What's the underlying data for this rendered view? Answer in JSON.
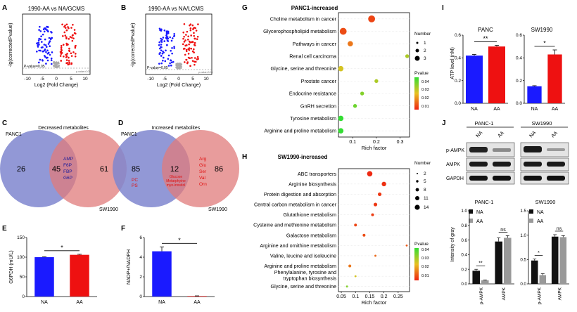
{
  "panels": {
    "A": {
      "letter": "A",
      "title": "1990-AA vs NA/GCMS",
      "ylabel": "-lg(correctedPvalue)",
      "xlabel": "Log2 (Fold Change)",
      "xticks": [
        "-10",
        "-5",
        "0",
        "5",
        "10"
      ],
      "pline": "P-value=0.05",
      "pline_right": "p-value=0.05"
    },
    "B": {
      "letter": "B",
      "title": "1990-AA vs NA/LCMS",
      "ylabel": "-lg(correctedPvalue)",
      "xlabel": "Log2 (Fold Change)",
      "xticks": [
        "-10",
        "-5",
        "0",
        "5",
        "10"
      ],
      "pline": "P-value=0.05",
      "pline_right": "p-value=0.05"
    },
    "C": {
      "letter": "C",
      "title": "Decreased metabolites",
      "left_label": "PANC1",
      "right_label": "SW1990",
      "left_count": "26",
      "mid_count": "45",
      "right_count": "61",
      "mid_items": [
        "AMP",
        "F6P",
        "FBP",
        "G6P"
      ]
    },
    "D": {
      "letter": "D",
      "title": "Increased metabolites",
      "left_label": "PANC1",
      "right_label": "SW1990",
      "left_count": "85",
      "mid_count": "12",
      "right_count": "86",
      "left_items": [
        "PC",
        "PS"
      ],
      "mid_items": [
        "Glucose",
        "Metarphyine",
        "myo-inositol"
      ],
      "right_items": [
        "Arg",
        "Glu",
        "Ser",
        "Val",
        "Orn"
      ]
    },
    "E": {
      "letter": "E",
      "star": "*"
    },
    "F": {
      "letter": "F",
      "star": "*"
    },
    "G": {
      "letter": "G",
      "title": "PANC1-increased",
      "xlabel": "Rich factor",
      "legend_number_title": "Number",
      "legend_numbers": [
        "1",
        "2",
        "3"
      ],
      "legend_p_title": "Pvalue",
      "legend_p_ticks": [
        "0.04",
        "0.03",
        "0.02",
        "0.01"
      ]
    },
    "H": {
      "letter": "H",
      "title": "SW1990-increased",
      "xlabel": "Rich factor",
      "legend_number_title": "Number",
      "legend_numbers": [
        "2",
        "5",
        "8",
        "11",
        "14"
      ],
      "legend_p_title": "Pvalue",
      "legend_p_ticks": [
        "0.04",
        "0.03",
        "0.02",
        "0.01"
      ]
    },
    "I": {
      "letter": "I",
      "ylabel": "ATP level (nM)",
      "panc_title": "PANC",
      "sw_title": "SW1990",
      "panc_star": "**",
      "sw_star": "*"
    },
    "J": {
      "letter": "J",
      "panc_label": "PANC-1",
      "sw_label": "SW1990",
      "lane_labels": [
        "NA",
        "AA",
        "NA",
        "AA"
      ],
      "rows": [
        "p-AMPK",
        "AMPK",
        "GAPDH"
      ],
      "bar_panc_title": "PANC-1",
      "bar_sw_title": "SW1990",
      "ylabel": "Intensity of gray",
      "legend": [
        "NA",
        "AA"
      ],
      "stars": [
        "**",
        "ns",
        "*",
        "ns"
      ]
    }
  },
  "colors": {
    "blue": "#1a1aff",
    "red": "#ee1111",
    "gray": "#999999",
    "black": "#111111",
    "venn_left": "#7f86cf",
    "venn_right": "#e07b7b"
  },
  "chart_data": [
    {
      "id": "E",
      "type": "bar",
      "categories": [
        "NA",
        "AA"
      ],
      "values": [
        100,
        106
      ],
      "errors": [
        1,
        1.5
      ],
      "ylabel": "G6PDH (mU/L)",
      "ylim": [
        0,
        150
      ],
      "yticks": [
        "0",
        "50",
        "100",
        "150"
      ]
    },
    {
      "id": "F",
      "type": "bar",
      "categories": [
        "NA",
        "AA"
      ],
      "values": [
        4.6,
        0.05
      ],
      "errors": [
        0.45,
        0.02
      ],
      "ylabel": "NADP+/NADPH",
      "ylim": [
        0,
        6
      ],
      "yticks": [
        "0",
        "2",
        "4",
        "6"
      ]
    },
    {
      "id": "G",
      "type": "scatter",
      "title": "PANC1-increased",
      "xlabel": "Rich factor",
      "xlim": [
        0.04,
        0.34
      ],
      "xticks": [
        "0.1",
        "0.2",
        "0.3"
      ],
      "categories": [
        "Choline metabolism in cancer",
        "Glycerophospholipid metabolism",
        "Pathways in cancer",
        "Renal cell carcinoma",
        "Glycine, serine and threonine",
        "Prostate cancer",
        "Endocrine resistance",
        "GnRH secretion",
        "Tyrosine metabolism",
        "Arginine and proline metabolism"
      ],
      "x": [
        0.18,
        0.06,
        0.09,
        0.33,
        0.05,
        0.2,
        0.14,
        0.11,
        0.05,
        0.05
      ],
      "number": [
        3,
        3,
        2,
        1,
        2,
        1,
        1,
        1,
        2,
        2
      ],
      "pvalue": [
        0.005,
        0.006,
        0.012,
        0.03,
        0.025,
        0.03,
        0.035,
        0.038,
        0.045,
        0.045
      ]
    },
    {
      "id": "H",
      "type": "scatter",
      "title": "SW1990-increased",
      "xlabel": "Rich factor",
      "xlim": [
        0.04,
        0.29
      ],
      "xticks": [
        "0.05",
        "0.1",
        "0.15",
        "0.2",
        "0.25"
      ],
      "categories": [
        "ABC transporters",
        "Arginine biosynthesis",
        "Protein digestion and absorption",
        "Central carbon metabolism in cancer",
        "Glutathione metabolism",
        "Cysteine and methionine metabolism",
        "Galactose metabolism",
        "Arginine and ornithine metabolism",
        "Valine, leucine and isoleucine",
        "Arginine and proline metabolism",
        "Phenylalanine, tyrosine and tryptophan biosynthesis",
        "Glycine, serine and threonine"
      ],
      "x": [
        0.15,
        0.2,
        0.185,
        0.17,
        0.16,
        0.1,
        0.13,
        0.28,
        0.17,
        0.08,
        0.1,
        0.07
      ],
      "number": [
        14,
        11,
        8,
        8,
        5,
        5,
        5,
        2,
        2,
        5,
        2,
        2
      ],
      "pvalue": [
        0.001,
        0.002,
        0.003,
        0.003,
        0.004,
        0.005,
        0.006,
        0.008,
        0.01,
        0.012,
        0.025,
        0.035
      ]
    },
    {
      "id": "I-PANC",
      "type": "bar",
      "categories": [
        "NA",
        "AA"
      ],
      "values": [
        0.42,
        0.5
      ],
      "errors": [
        0.01,
        0.01
      ],
      "ylabel": "ATP level (nM)",
      "ylim": [
        0,
        0.6
      ],
      "yticks": [
        "0.0",
        "0.2",
        "0.4",
        "0.6"
      ]
    },
    {
      "id": "I-SW1990",
      "type": "bar",
      "categories": [
        "NA",
        "AA"
      ],
      "values": [
        0.15,
        0.43
      ],
      "errors": [
        0.005,
        0.04
      ],
      "ylim": [
        0,
        0.6
      ],
      "yticks": [
        "0.0",
        "0.2",
        "0.4",
        "0.6"
      ]
    },
    {
      "id": "J-PANC",
      "type": "bar",
      "categories": [
        "p-AMPK",
        "AMPK"
      ],
      "series": [
        {
          "name": "NA",
          "values": [
            0.18,
            0.58
          ],
          "errors": [
            0.02,
            0.05
          ]
        },
        {
          "name": "AA",
          "values": [
            0.05,
            0.63
          ],
          "errors": [
            0.005,
            0.03
          ]
        }
      ],
      "ylim": [
        0,
        1.0
      ],
      "yticks": [
        "0.0",
        "0.2",
        "0.4",
        "0.6",
        "0.8",
        "1.0"
      ]
    },
    {
      "id": "J-SW1990",
      "type": "bar",
      "categories": [
        "p-AMPK",
        "AMPK"
      ],
      "series": [
        {
          "name": "NA",
          "values": [
            0.48,
            0.97
          ],
          "errors": [
            0.03,
            0.04
          ]
        },
        {
          "name": "AA",
          "values": [
            0.18,
            0.96
          ],
          "errors": [
            0.03,
            0.03
          ]
        }
      ],
      "ylim": [
        0,
        1.5
      ],
      "yticks": [
        "0.0",
        "0.5",
        "1.0",
        "1.5"
      ]
    }
  ]
}
